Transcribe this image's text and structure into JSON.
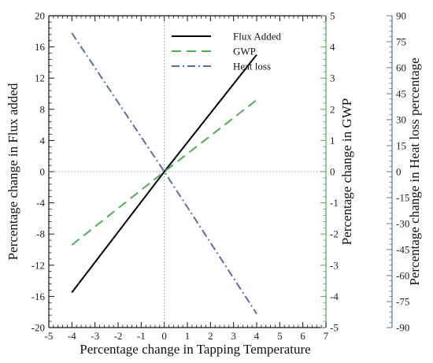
{
  "chart_data": {
    "type": "line",
    "xlabel": "Percentage change in Tapping Temperature",
    "xlim": [
      -5,
      7
    ],
    "xticks": [
      -5,
      -4,
      -3,
      -2,
      -1,
      0,
      1,
      2,
      3,
      4,
      5,
      6,
      7
    ],
    "axes": {
      "left": {
        "label": "Percentage change in Flux added",
        "ylim": [
          -20,
          20
        ],
        "ticks": [
          -20,
          -16,
          -12,
          -8,
          -4,
          0,
          4,
          8,
          12,
          16,
          20
        ],
        "color": "#111111"
      },
      "right1": {
        "label": "Percentage change in GWP",
        "ylim": [
          -5,
          5
        ],
        "ticks": [
          -5,
          -4,
          -3,
          -2,
          -1,
          0,
          1,
          2,
          3,
          4,
          5
        ],
        "color": "#4caf50"
      },
      "right2": {
        "label": "Percentage change in Heat loss percentage",
        "ylim": [
          -90,
          90
        ],
        "ticks": [
          -90,
          -75,
          -60,
          -45,
          -30,
          -15,
          0,
          15,
          30,
          45,
          60,
          75,
          90
        ],
        "color": "#5b6fa6"
      }
    },
    "series": [
      {
        "name": "Flux Added",
        "axis": "left",
        "x": [
          -4,
          0,
          4
        ],
        "y": [
          -15.5,
          0,
          15
        ],
        "color": "#000000",
        "dash": "solid"
      },
      {
        "name": "GWP",
        "axis": "right1",
        "x": [
          -4,
          0,
          4
        ],
        "y": [
          -2.35,
          0,
          2.3
        ],
        "color": "#4caf50",
        "dash": "dashed"
      },
      {
        "name": "Heat loss",
        "axis": "right2",
        "x": [
          -4,
          0,
          4
        ],
        "y": [
          80,
          0,
          -82
        ],
        "color": "#5b6fa6",
        "dash": "dashdot"
      }
    ],
    "reference_lines": {
      "x": 0,
      "y": 0
    },
    "legend": "top-center",
    "grid": false
  }
}
